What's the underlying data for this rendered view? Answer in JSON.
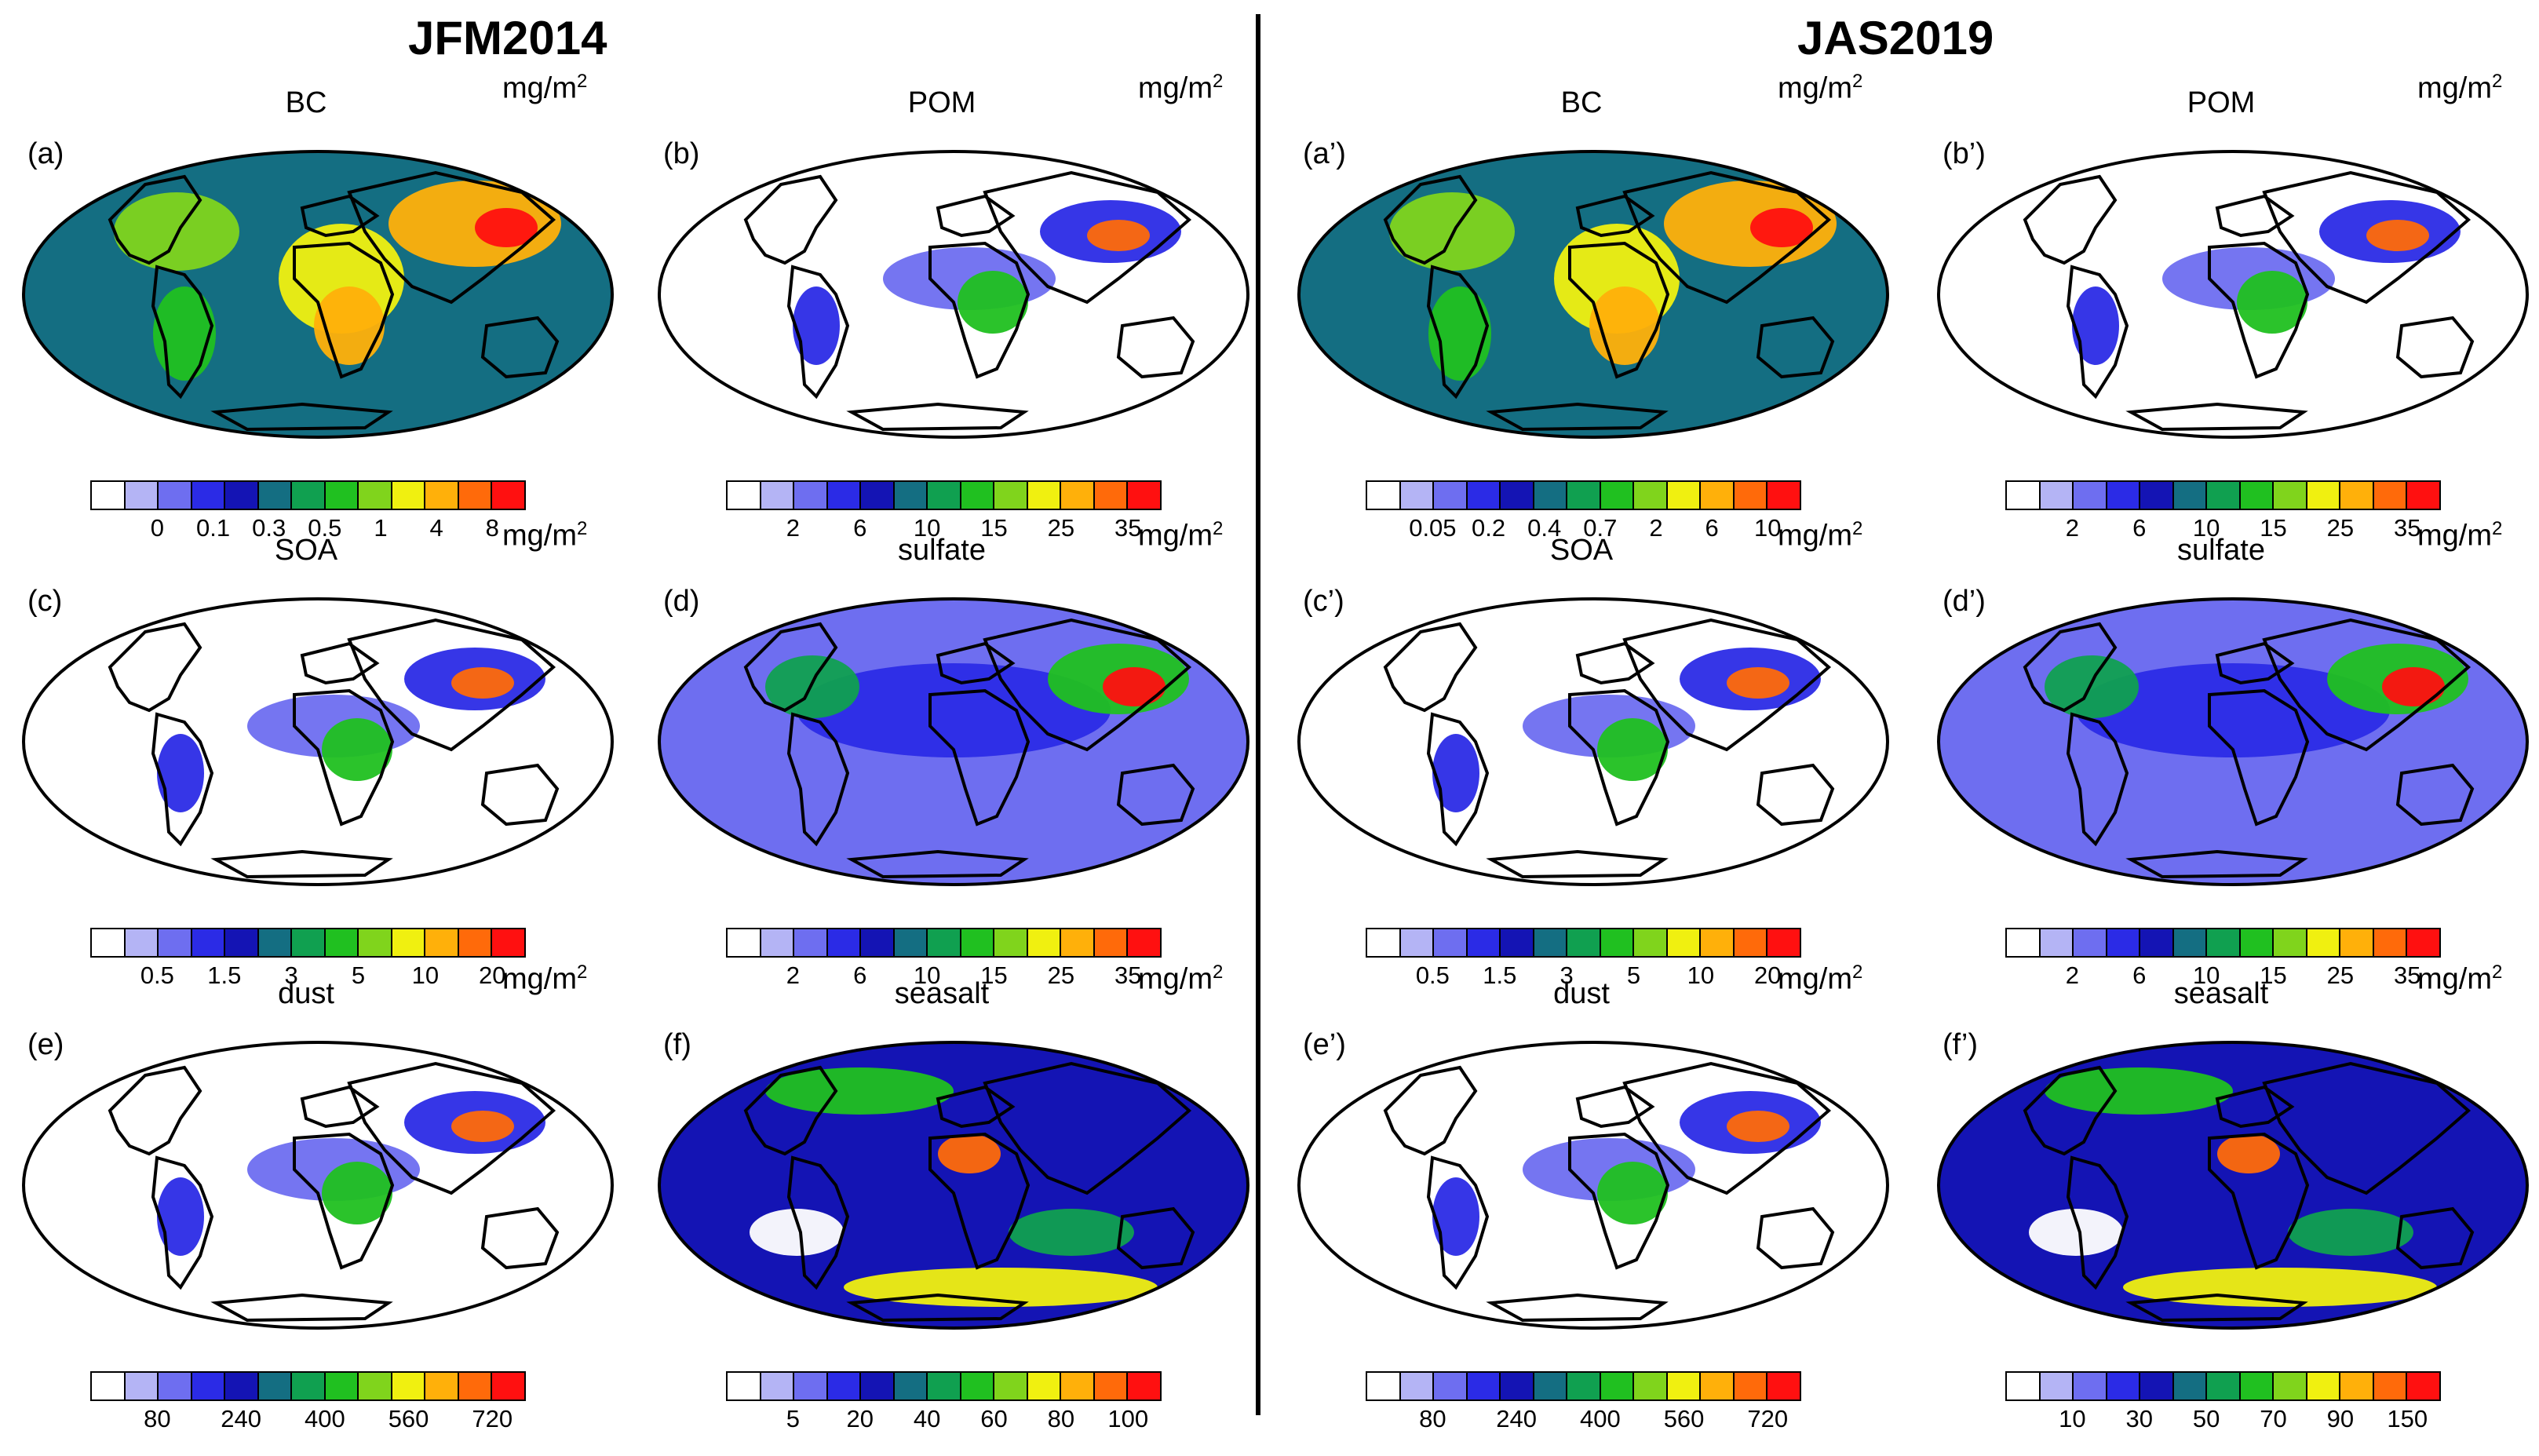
{
  "sections": [
    {
      "id": "left",
      "title": "JFM2014"
    },
    {
      "id": "right",
      "title": "JAS2019"
    }
  ],
  "unit_base": "mg/m",
  "unit_exp": "2",
  "colormap": [
    "#ffffff",
    "#b4b4f5",
    "#6e6ef0",
    "#2b2be6",
    "#1414b4",
    "#146e82",
    "#10a050",
    "#20c020",
    "#80d41c",
    "#f0f010",
    "#ffb00a",
    "#ff6a0a",
    "#ff1010"
  ],
  "panels": [
    {
      "label": "(a)",
      "name": "BC",
      "section": "left",
      "ticks": [
        "0",
        "0.1",
        "0.3",
        "0.5",
        "1",
        "4",
        "8"
      ],
      "fill": "high"
    },
    {
      "label": "(b)",
      "name": "POM",
      "section": "left",
      "ticks": [
        "2",
        "6",
        "10",
        "15",
        "25",
        "35"
      ],
      "fill": "low"
    },
    {
      "label": "(c)",
      "name": "SOA",
      "section": "left",
      "ticks": [
        "0.5",
        "1.5",
        "3",
        "5",
        "10",
        "20"
      ],
      "fill": "low"
    },
    {
      "label": "(d)",
      "name": "sulfate",
      "section": "left",
      "ticks": [
        "2",
        "6",
        "10",
        "15",
        "25",
        "35"
      ],
      "fill": "pale"
    },
    {
      "label": "(e)",
      "name": "dust",
      "section": "left",
      "ticks": [
        "80",
        "240",
        "400",
        "560",
        "720"
      ],
      "fill": "low"
    },
    {
      "label": "(f)",
      "name": "seasalt",
      "section": "left",
      "ticks": [
        "5",
        "20",
        "40",
        "60",
        "80",
        "100"
      ],
      "fill": "ocean"
    },
    {
      "label": "(a’)",
      "name": "BC",
      "section": "right",
      "ticks": [
        "0.05",
        "0.2",
        "0.4",
        "0.7",
        "2",
        "6",
        "10"
      ],
      "fill": "high"
    },
    {
      "label": "(b’)",
      "name": "POM",
      "section": "right",
      "ticks": [
        "2",
        "6",
        "10",
        "15",
        "25",
        "35"
      ],
      "fill": "low"
    },
    {
      "label": "(c’)",
      "name": "SOA",
      "section": "right",
      "ticks": [
        "0.5",
        "1.5",
        "3",
        "5",
        "10",
        "20"
      ],
      "fill": "low"
    },
    {
      "label": "(d’)",
      "name": "sulfate",
      "section": "right",
      "ticks": [
        "2",
        "6",
        "10",
        "15",
        "25",
        "35"
      ],
      "fill": "pale"
    },
    {
      "label": "(e’)",
      "name": "dust",
      "section": "right",
      "ticks": [
        "80",
        "240",
        "400",
        "560",
        "720"
      ],
      "fill": "low"
    },
    {
      "label": "(f’)",
      "name": "seasalt",
      "section": "right",
      "ticks": [
        "10",
        "30",
        "50",
        "70",
        "90",
        "150"
      ],
      "fill": "ocean"
    }
  ]
}
